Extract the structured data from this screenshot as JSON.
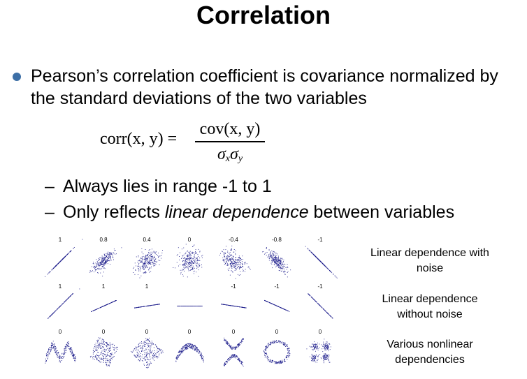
{
  "slide": {
    "title": "Correlation",
    "bullet": "Pearson’s correlation coefficient is covariance normalized by the standard deviations of the two variables",
    "formula": {
      "lhs": "corr(x, y) =",
      "numerator": "cov(x, y)",
      "denominator_symbol": "σ",
      "denominator_sub_x": "x",
      "denominator_sub_y": "y"
    },
    "subbullets": [
      {
        "dash": "–",
        "pre": "Always lies in range -1 to 1",
        "em": "",
        "post": ""
      },
      {
        "dash": "–",
        "pre": "Only reflects ",
        "em": "linear dependence",
        "post": " between variables"
      }
    ],
    "colors": {
      "bullet_dot": "#3d6fa6",
      "points": "#1b1b8a"
    }
  },
  "chart_data": {
    "type": "scatter",
    "rows": [
      {
        "label": "Linear dependence with noise",
        "labels": [
          "1",
          "0.8",
          "0.4",
          "0",
          "-0.4",
          "-0.8",
          "-1"
        ],
        "correlations": [
          1,
          0.8,
          0.4,
          0,
          -0.4,
          -0.8,
          -1
        ],
        "kind": "linear-noise"
      },
      {
        "label": "Linear dependence without noise",
        "labels": [
          "1",
          "1",
          "1",
          "",
          "-1",
          "-1",
          "-1"
        ],
        "correlations": [
          1,
          1,
          1,
          0,
          -1,
          -1,
          -1
        ],
        "kind": "linear-no-noise"
      },
      {
        "label": "Various nonlinear dependencies",
        "labels": [
          "0",
          "0",
          "0",
          "0",
          "0",
          "0",
          "0"
        ],
        "correlations": [
          0,
          0,
          0,
          0,
          0,
          0,
          0
        ],
        "kind": "nonlinear",
        "shapes": [
          "w-shape",
          "rotated-square",
          "diamond",
          "parabola",
          "x-shape",
          "ring",
          "four-clusters"
        ]
      }
    ]
  }
}
